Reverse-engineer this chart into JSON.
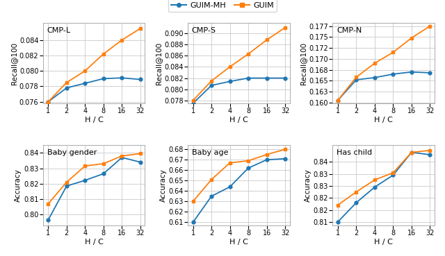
{
  "x": [
    1,
    2,
    4,
    8,
    16,
    32
  ],
  "subplots": [
    {
      "title": "CMP-L",
      "ylabel": "Recall@100",
      "guim_mh": [
        0.076,
        0.0778,
        0.0784,
        0.079,
        0.0791,
        0.0789
      ],
      "guim": [
        0.076,
        0.0785,
        0.08,
        0.0822,
        0.084,
        0.0855
      ],
      "ylim": [
        0.0758,
        0.0862
      ],
      "yticks": [
        0.076,
        0.078,
        0.08,
        0.082,
        0.084
      ]
    },
    {
      "title": "CMP-S",
      "ylabel": "Recall@100",
      "guim_mh": [
        0.0775,
        0.0807,
        0.0814,
        0.082,
        0.082,
        0.082
      ],
      "guim": [
        0.078,
        0.0815,
        0.084,
        0.0863,
        0.0888,
        0.091
      ],
      "ylim": [
        0.0775,
        0.0918
      ],
      "yticks": [
        0.078,
        0.08,
        0.082,
        0.084,
        0.086,
        0.088,
        0.09
      ]
    },
    {
      "title": "CMP-N",
      "ylabel": "Recall@100",
      "guim_mh": [
        0.1605,
        0.1652,
        0.1657,
        0.1665,
        0.167,
        0.1668
      ],
      "guim": [
        0.1605,
        0.1658,
        0.169,
        0.1715,
        0.1748,
        0.1775
      ],
      "ylim": [
        0.1598,
        0.1782
      ],
      "yticks": [
        0.16,
        0.1625,
        0.165,
        0.1675,
        0.17,
        0.1725,
        0.175,
        0.1775
      ]
    },
    {
      "title": "Baby gender",
      "ylabel": "Accuracy",
      "guim_mh": [
        0.7965,
        0.8185,
        0.8222,
        0.8265,
        0.837,
        0.834
      ],
      "guim": [
        0.807,
        0.821,
        0.8315,
        0.833,
        0.838,
        0.8395
      ],
      "ylim": [
        0.793,
        0.845
      ],
      "yticks": [
        0.8,
        0.81,
        0.82,
        0.83,
        0.84
      ]
    },
    {
      "title": "Baby age",
      "ylabel": "Accuracy",
      "guim_mh": [
        0.61,
        0.635,
        0.644,
        0.662,
        0.67,
        0.671
      ],
      "guim": [
        0.63,
        0.651,
        0.667,
        0.669,
        0.675,
        0.68
      ],
      "ylim": [
        0.607,
        0.684
      ],
      "yticks": [
        0.61,
        0.62,
        0.63,
        0.64,
        0.65,
        0.66,
        0.67,
        0.68
      ]
    },
    {
      "title": "Has child",
      "ylabel": "Accuracy",
      "guim_mh": [
        0.815,
        0.823,
        0.8295,
        0.8345,
        0.844,
        0.843
      ],
      "guim": [
        0.822,
        0.8275,
        0.8325,
        0.8355,
        0.844,
        0.8448
      ],
      "ylim": [
        0.8135,
        0.847
      ],
      "yticks": [
        0.815,
        0.82,
        0.825,
        0.83,
        0.835,
        0.84
      ]
    }
  ],
  "color_mh": "#1f77b4",
  "color_guim": "#ff7f0e",
  "marker_mh": "o",
  "marker_guim": "s",
  "legend_labels": [
    "GUIM-MH",
    "GUIM"
  ],
  "xlabel": "H / C",
  "grid_color": "#d0d0d0",
  "fig_bg": "#ffffff"
}
